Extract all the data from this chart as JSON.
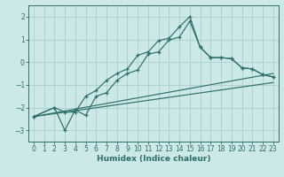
{
  "xlabel": "Humidex (Indice chaleur)",
  "bg_color": "#cce8e8",
  "grid_color": "#aad0d0",
  "line_color": "#2d7068",
  "spine_color": "#2d7068",
  "xlim": [
    -0.5,
    23.5
  ],
  "ylim": [
    -3.5,
    2.5
  ],
  "yticks": [
    -3,
    -2,
    -1,
    0,
    1,
    2
  ],
  "xticks": [
    0,
    1,
    2,
    3,
    4,
    5,
    6,
    7,
    8,
    9,
    10,
    11,
    12,
    13,
    14,
    15,
    16,
    17,
    18,
    19,
    20,
    21,
    22,
    23
  ],
  "curve1_x": [
    0,
    2,
    3,
    4,
    5,
    6,
    7,
    8,
    9,
    10,
    11,
    12,
    13,
    14,
    15,
    16,
    17,
    18,
    19,
    20,
    21,
    22,
    23
  ],
  "curve1_y": [
    -2.4,
    -2.0,
    -2.2,
    -2.2,
    -1.5,
    -1.25,
    -0.8,
    -0.5,
    -0.3,
    0.3,
    0.45,
    0.95,
    1.05,
    1.55,
    2.0,
    0.65,
    0.2,
    0.2,
    0.15,
    -0.25,
    -0.3,
    -0.55,
    -0.65
  ],
  "curve2_x": [
    0,
    2,
    3,
    4,
    5,
    6,
    7,
    8,
    9,
    10,
    11,
    12,
    13,
    14,
    15,
    16,
    17,
    18,
    19,
    20,
    21,
    22,
    23
  ],
  "curve2_y": [
    -2.4,
    -2.0,
    -3.0,
    -2.1,
    -2.35,
    -1.5,
    -1.35,
    -0.8,
    -0.5,
    -0.35,
    0.35,
    0.45,
    0.97,
    1.1,
    1.8,
    0.65,
    0.2,
    0.2,
    0.15,
    -0.25,
    -0.3,
    -0.55,
    -0.65
  ],
  "line3_x": [
    0,
    23
  ],
  "line3_y": [
    -2.4,
    -0.5
  ],
  "line4_x": [
    0,
    23
  ],
  "line4_y": [
    -2.4,
    -0.9
  ]
}
